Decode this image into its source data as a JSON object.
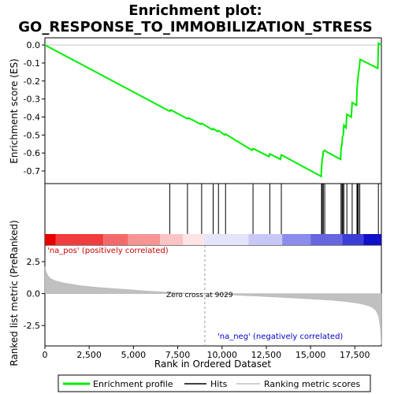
{
  "chart_data": {
    "type": "line",
    "title_line1": "Enrichment plot:",
    "title_line2": "GO_RESPONSE_TO_IMMOBILIZATION_STRESS",
    "xlabel": "Rank in Ordered Dataset",
    "ylabel_top": "Enrichment score (ES)",
    "ylabel_bottom": "Ranked list metric (PreRanked)",
    "xlim": [
      0,
      19000
    ],
    "es_ylim": [
      -0.77,
      0.04
    ],
    "metric_ylim": [
      -4.1,
      3.8
    ],
    "x_ticks": [
      {
        "v": 0,
        "label": "0"
      },
      {
        "v": 2500,
        "label": "2,500"
      },
      {
        "v": 5000,
        "label": "5,000"
      },
      {
        "v": 7500,
        "label": "7,500"
      },
      {
        "v": 10000,
        "label": "10,000"
      },
      {
        "v": 12500,
        "label": "12,500"
      },
      {
        "v": 15000,
        "label": "15,000"
      },
      {
        "v": 17500,
        "label": "17,500"
      }
    ],
    "es_ticks": [
      {
        "v": 0.0,
        "label": "0.0"
      },
      {
        "v": -0.1,
        "label": "-0.1"
      },
      {
        "v": -0.2,
        "label": "-0.2"
      },
      {
        "v": -0.3,
        "label": "-0.3"
      },
      {
        "v": -0.4,
        "label": "-0.4"
      },
      {
        "v": -0.5,
        "label": "-0.5"
      },
      {
        "v": -0.6,
        "label": "-0.6"
      },
      {
        "v": -0.7,
        "label": "-0.7"
      }
    ],
    "metric_ticks": [
      {
        "v": 2.5,
        "label": "2.5"
      },
      {
        "v": 0.0,
        "label": "0.0"
      },
      {
        "v": -2.5,
        "label": "-2.5"
      }
    ],
    "enrichment_profile": {
      "name": "Enrichment profile",
      "color": "#00ee00",
      "x": [
        0,
        7050,
        7100,
        8050,
        8100,
        8800,
        8850,
        9450,
        9500,
        9750,
        9800,
        10150,
        10200,
        11700,
        11750,
        12650,
        12700,
        13300,
        13350,
        15600,
        15620,
        15640,
        15660,
        15700,
        15720,
        15800,
        15850,
        16700,
        16720,
        16780,
        16800,
        16850,
        16880,
        17000,
        17050,
        17300,
        17350,
        17600,
        17620,
        17660,
        17700,
        17750,
        17800,
        18800,
        18830,
        19000
      ],
      "y": [
        0.0,
        -0.368,
        -0.36,
        -0.41,
        -0.405,
        -0.44,
        -0.435,
        -0.47,
        -0.465,
        -0.48,
        -0.475,
        -0.5,
        -0.495,
        -0.585,
        -0.575,
        -0.62,
        -0.605,
        -0.635,
        -0.61,
        -0.73,
        -0.68,
        -0.66,
        -0.63,
        -0.62,
        -0.59,
        -0.585,
        -0.59,
        -0.635,
        -0.575,
        -0.55,
        -0.51,
        -0.5,
        -0.445,
        -0.46,
        -0.385,
        -0.4,
        -0.32,
        -0.335,
        -0.25,
        -0.2,
        -0.16,
        -0.13,
        -0.08,
        -0.13,
        0.01,
        0.0
      ]
    },
    "hits": [
      7050,
      8050,
      8850,
      9500,
      9800,
      10200,
      11750,
      12700,
      13350,
      15620,
      15660,
      15720,
      15800,
      16720,
      16780,
      16820,
      16880,
      17050,
      17350,
      17620,
      17660,
      17700,
      17780,
      18830
    ],
    "ranking_metric": {
      "x": [
        0,
        60,
        150,
        300,
        600,
        1000,
        2000,
        3000,
        4000,
        5000,
        6000,
        7000,
        8000,
        9029,
        10000,
        11000,
        12000,
        13000,
        14000,
        15000,
        16000,
        17000,
        17500,
        18000,
        18300,
        18500,
        18700,
        18850,
        18950,
        19000
      ],
      "y": [
        2.1,
        1.75,
        1.45,
        1.2,
        1.0,
        0.85,
        0.62,
        0.48,
        0.38,
        0.28,
        0.18,
        0.1,
        0.05,
        0.0,
        -0.07,
        -0.14,
        -0.2,
        -0.27,
        -0.34,
        -0.42,
        -0.5,
        -0.62,
        -0.72,
        -0.85,
        -0.97,
        -1.1,
        -1.35,
        -1.8,
        -2.8,
        -4.0
      ]
    },
    "zero_cross_label": "Zero cross at 9029",
    "zero_cross_x": 9029,
    "pos_label": "'na_pos' (positively correlated)",
    "neg_label": "'na_neg' (negatively correlated)",
    "colorbar_segments": [
      {
        "x0": 0,
        "x1": 600,
        "color": "#e60000"
      },
      {
        "x0": 600,
        "x1": 3300,
        "color": "#f03c3c"
      },
      {
        "x0": 3300,
        "x1": 4700,
        "color": "#f46a6a"
      },
      {
        "x0": 4700,
        "x1": 6500,
        "color": "#f89494"
      },
      {
        "x0": 6500,
        "x1": 7800,
        "color": "#fbc4c4"
      },
      {
        "x0": 7800,
        "x1": 9000,
        "color": "#fde4e4"
      },
      {
        "x0": 9000,
        "x1": 11500,
        "color": "#e4e4fb"
      },
      {
        "x0": 11500,
        "x1": 13400,
        "color": "#c8c8f6"
      },
      {
        "x0": 13400,
        "x1": 15000,
        "color": "#8c8cec"
      },
      {
        "x0": 15000,
        "x1": 16800,
        "color": "#6666e0"
      },
      {
        "x0": 16800,
        "x1": 18000,
        "color": "#3c3cd6"
      },
      {
        "x0": 18000,
        "x1": 19000,
        "color": "#1010c8"
      }
    ],
    "legend": [
      {
        "label": "Enrichment profile",
        "icon": "green-line",
        "color": "#00ee00"
      },
      {
        "label": "Hits",
        "icon": "black-line",
        "color": "#000000"
      },
      {
        "label": "Ranking metric scores",
        "icon": "gray-line",
        "color": "#c0c0c0"
      }
    ]
  }
}
